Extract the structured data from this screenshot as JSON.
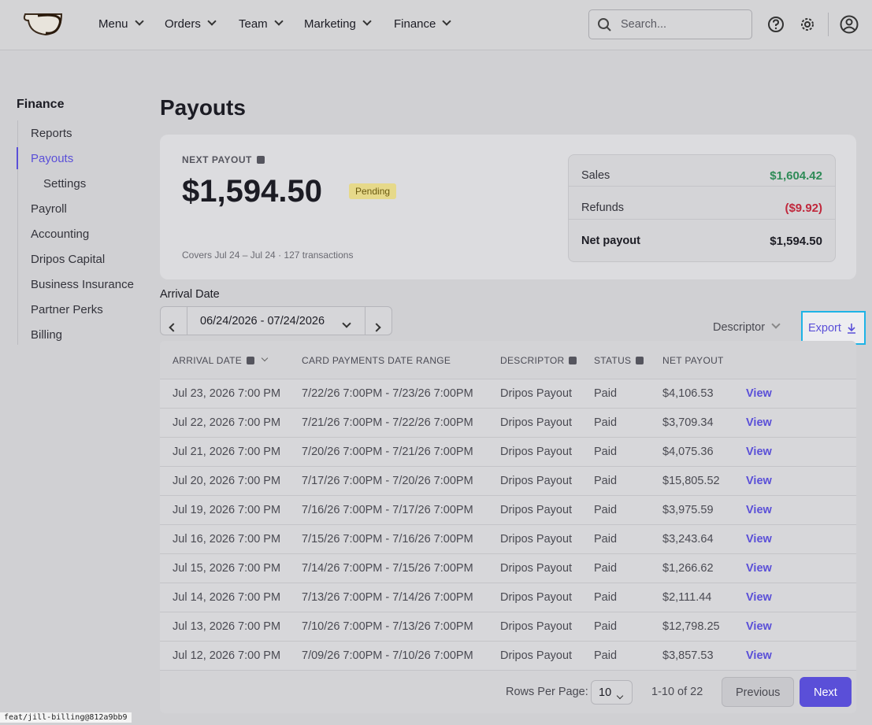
{
  "nav": {
    "items": [
      "Menu",
      "Orders",
      "Team",
      "Marketing",
      "Finance"
    ],
    "search_placeholder": "Search..."
  },
  "sidebar": {
    "title": "Finance",
    "items": [
      "Reports",
      "Payouts",
      "Settings",
      "Payroll",
      "Accounting",
      "Dripos Capital",
      "Business Insurance",
      "Partner Perks",
      "Billing"
    ]
  },
  "page_title": "Payouts",
  "summary": {
    "label": "NEXT PAYOUT",
    "amount": "$1,594.50",
    "badge": "Pending",
    "footnote": "Covers Jul 24 – Jul 24 · 127 transactions",
    "breakdown": [
      [
        "Sales",
        "$1,604.42"
      ],
      [
        "Refunds",
        "($9.92)"
      ],
      [
        "Net payout",
        "$1,594.50"
      ]
    ]
  },
  "filter": {
    "label": "Arrival Date",
    "range": "06/24/2026 - 07/24/2026",
    "descriptor": "Descriptor",
    "export": "Export"
  },
  "table": {
    "columns": [
      "ARRIVAL DATE",
      "CARD PAYMENTS DATE RANGE",
      "DESCRIPTOR",
      "STATUS",
      "NET PAYOUT"
    ],
    "rows": [
      [
        "Jul 23, 2026 7:00 PM",
        "7/22/26 7:00PM - 7/23/26 7:00PM",
        "Dripos Payout",
        "Paid",
        "$4,106.53",
        "View"
      ],
      [
        "Jul 22, 2026 7:00 PM",
        "7/21/26 7:00PM - 7/22/26 7:00PM",
        "Dripos Payout",
        "Paid",
        "$3,709.34",
        "View"
      ],
      [
        "Jul 21, 2026 7:00 PM",
        "7/20/26 7:00PM - 7/21/26 7:00PM",
        "Dripos Payout",
        "Paid",
        "$4,075.36",
        "View"
      ],
      [
        "Jul 20, 2026 7:00 PM",
        "7/17/26 7:00PM - 7/20/26 7:00PM",
        "Dripos Payout",
        "Paid",
        "$15,805.52",
        "View"
      ],
      [
        "Jul 19, 2026 7:00 PM",
        "7/16/26 7:00PM - 7/17/26 7:00PM",
        "Dripos Payout",
        "Paid",
        "$3,975.59",
        "View"
      ],
      [
        "Jul 16, 2026 7:00 PM",
        "7/15/26 7:00PM - 7/16/26 7:00PM",
        "Dripos Payout",
        "Paid",
        "$3,243.64",
        "View"
      ],
      [
        "Jul 15, 2026 7:00 PM",
        "7/14/26 7:00PM - 7/15/26 7:00PM",
        "Dripos Payout",
        "Paid",
        "$1,266.62",
        "View"
      ],
      [
        "Jul 14, 2026 7:00 PM",
        "7/13/26 7:00PM - 7/14/26 7:00PM",
        "Dripos Payout",
        "Paid",
        "$2,111.44",
        "View"
      ],
      [
        "Jul 13, 2026 7:00 PM",
        "7/10/26 7:00PM - 7/13/26 7:00PM",
        "Dripos Payout",
        "Paid",
        "$12,798.25",
        "View"
      ],
      [
        "Jul 12, 2026 7:00 PM",
        "7/09/26 7:00PM - 7/10/26 7:00PM",
        "Dripos Payout",
        "Paid",
        "$3,857.53",
        "View"
      ]
    ]
  },
  "pagination": {
    "rows_per_page_label": "Rows Per Page:",
    "rows_per_page": "10",
    "range": "1-10 of 22",
    "previous": "Previous",
    "next": "Next"
  },
  "footer": {
    "build": "feat/jill-billing@812a9bb9"
  }
}
